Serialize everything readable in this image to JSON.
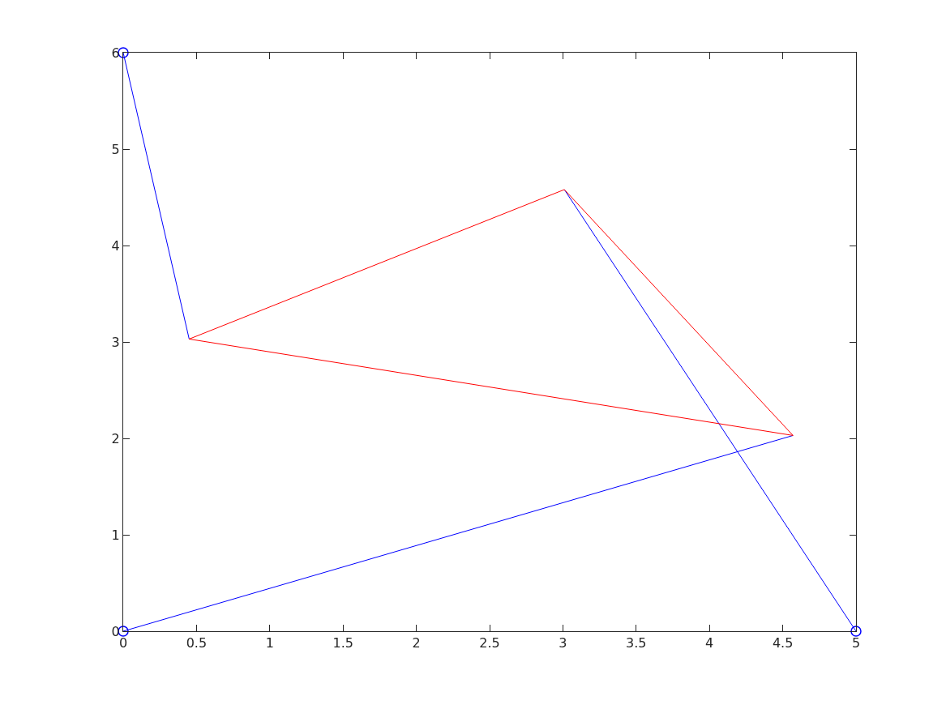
{
  "chart_data": {
    "type": "line",
    "xlim": [
      0,
      5
    ],
    "ylim": [
      0,
      6
    ],
    "xticks": [
      0,
      0.5,
      1,
      1.5,
      2,
      2.5,
      3,
      3.5,
      4,
      4.5,
      5
    ],
    "yticks": [
      0,
      1,
      2,
      3,
      4,
      5,
      6
    ],
    "grid": false,
    "line_style": "solid",
    "series": [
      {
        "color": "#0000ff",
        "x": [
          0,
          0.45
        ],
        "values": [
          6,
          3.03
        ]
      },
      {
        "color": "#0000ff",
        "x": [
          0,
          4.57
        ],
        "values": [
          0,
          2.03
        ]
      },
      {
        "color": "#0000ff",
        "x": [
          5,
          3.01
        ],
        "values": [
          0,
          4.58
        ]
      },
      {
        "color": "#ff0000",
        "x": [
          0.45,
          3.01,
          4.57
        ],
        "values": [
          3.03,
          4.58,
          2.03
        ]
      },
      {
        "color": "#ff0000",
        "x": [
          0.45,
          4.57
        ],
        "values": [
          3.03,
          2.03
        ]
      },
      {
        "type": "scatter",
        "color": "#0000ff",
        "marker": "circle",
        "x": [
          0,
          0,
          5
        ],
        "values": [
          6,
          0,
          0
        ]
      }
    ]
  }
}
